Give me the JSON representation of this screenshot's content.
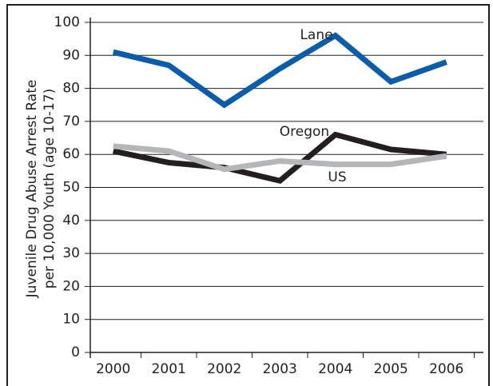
{
  "chart_data": {
    "type": "line",
    "ylabel": [
      "Juvenile Drug Abuse Arrest Rate",
      "per 10,000 Youth (age 10-17)"
    ],
    "categories": [
      "2000",
      "2001",
      "2002",
      "2003",
      "2004",
      "2005",
      "2006"
    ],
    "series": [
      {
        "name": "Lane",
        "color": "#0b5ca9",
        "values": [
          91,
          87,
          75,
          86,
          96,
          82,
          88
        ]
      },
      {
        "name": "Oregon",
        "color": "#231f20",
        "values": [
          61,
          57.5,
          56,
          52,
          66,
          61.5,
          60
        ]
      },
      {
        "name": "US",
        "color": "#b5b6b8",
        "values": [
          62.5,
          61,
          55.5,
          58,
          57,
          57,
          59.5
        ]
      }
    ],
    "ylim": [
      0,
      100
    ],
    "yticks": [
      0,
      10,
      20,
      30,
      40,
      50,
      60,
      70,
      80,
      90,
      100
    ],
    "grid": true
  }
}
